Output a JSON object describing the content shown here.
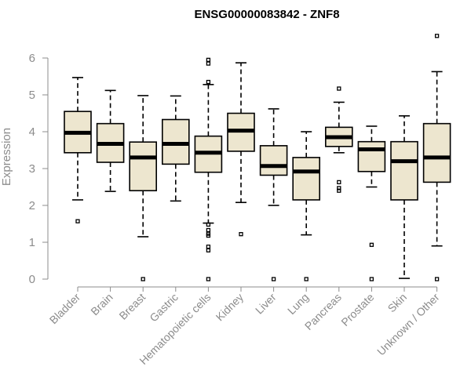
{
  "chart_data": {
    "type": "boxplot",
    "title": "ENSG00000083842 - ZNF8",
    "xlabel": "",
    "ylabel": "Expression",
    "ylim": [
      0,
      6.6
    ],
    "yticks": [
      0,
      1,
      2,
      3,
      4,
      5,
      6
    ],
    "box_color": "#ede6cf",
    "categories": [
      "Bladder",
      "Brain",
      "Breast",
      "Gastric",
      "Hematopoietic cells",
      "Kidney",
      "Liver",
      "Lung",
      "Pancreas",
      "Prostate",
      "Skin",
      "Unknown / Other"
    ],
    "boxes": [
      {
        "name": "Bladder",
        "whislo": 2.15,
        "q1": 3.43,
        "med": 3.97,
        "q3": 4.55,
        "whishi": 5.47,
        "fliers": [
          1.57
        ]
      },
      {
        "name": "Brain",
        "whislo": 2.38,
        "q1": 3.17,
        "med": 3.67,
        "q3": 4.22,
        "whishi": 5.12,
        "fliers": []
      },
      {
        "name": "Breast",
        "whislo": 1.15,
        "q1": 2.4,
        "med": 3.3,
        "q3": 3.72,
        "whishi": 4.98,
        "fliers": [
          0
        ]
      },
      {
        "name": "Gastric",
        "whislo": 2.12,
        "q1": 3.12,
        "med": 3.67,
        "q3": 4.33,
        "whishi": 4.97,
        "fliers": []
      },
      {
        "name": "Hematopoietic cells",
        "whislo": 1.52,
        "q1": 2.9,
        "med": 3.43,
        "q3": 3.88,
        "whishi": 5.28,
        "fliers": [
          0,
          0.78,
          0.88,
          1.18,
          1.23,
          1.33,
          1.48,
          5.35,
          5.85,
          5.95
        ]
      },
      {
        "name": "Kidney",
        "whislo": 2.08,
        "q1": 3.47,
        "med": 4.03,
        "q3": 4.5,
        "whishi": 5.87,
        "fliers": [
          1.22
        ]
      },
      {
        "name": "Liver",
        "whislo": 2.0,
        "q1": 2.82,
        "med": 3.07,
        "q3": 3.62,
        "whishi": 4.62,
        "fliers": [
          0
        ]
      },
      {
        "name": "Lung",
        "whislo": 1.2,
        "q1": 2.15,
        "med": 2.92,
        "q3": 3.3,
        "whishi": 4.0,
        "fliers": [
          0
        ]
      },
      {
        "name": "Pancreas",
        "whislo": 3.43,
        "q1": 3.6,
        "med": 3.85,
        "q3": 4.12,
        "whishi": 4.8,
        "fliers": [
          2.4,
          2.47,
          2.63,
          5.17
        ]
      },
      {
        "name": "Prostate",
        "whislo": 2.5,
        "q1": 2.92,
        "med": 3.52,
        "q3": 3.73,
        "whishi": 4.15,
        "fliers": [
          0,
          0.93
        ]
      },
      {
        "name": "Skin",
        "whislo": 0.02,
        "q1": 2.15,
        "med": 3.2,
        "q3": 3.73,
        "whishi": 4.43,
        "fliers": []
      },
      {
        "name": "Unknown / Other",
        "whislo": 0.9,
        "q1": 2.63,
        "med": 3.3,
        "q3": 4.22,
        "whishi": 5.63,
        "fliers": [
          0,
          6.6
        ]
      }
    ]
  }
}
